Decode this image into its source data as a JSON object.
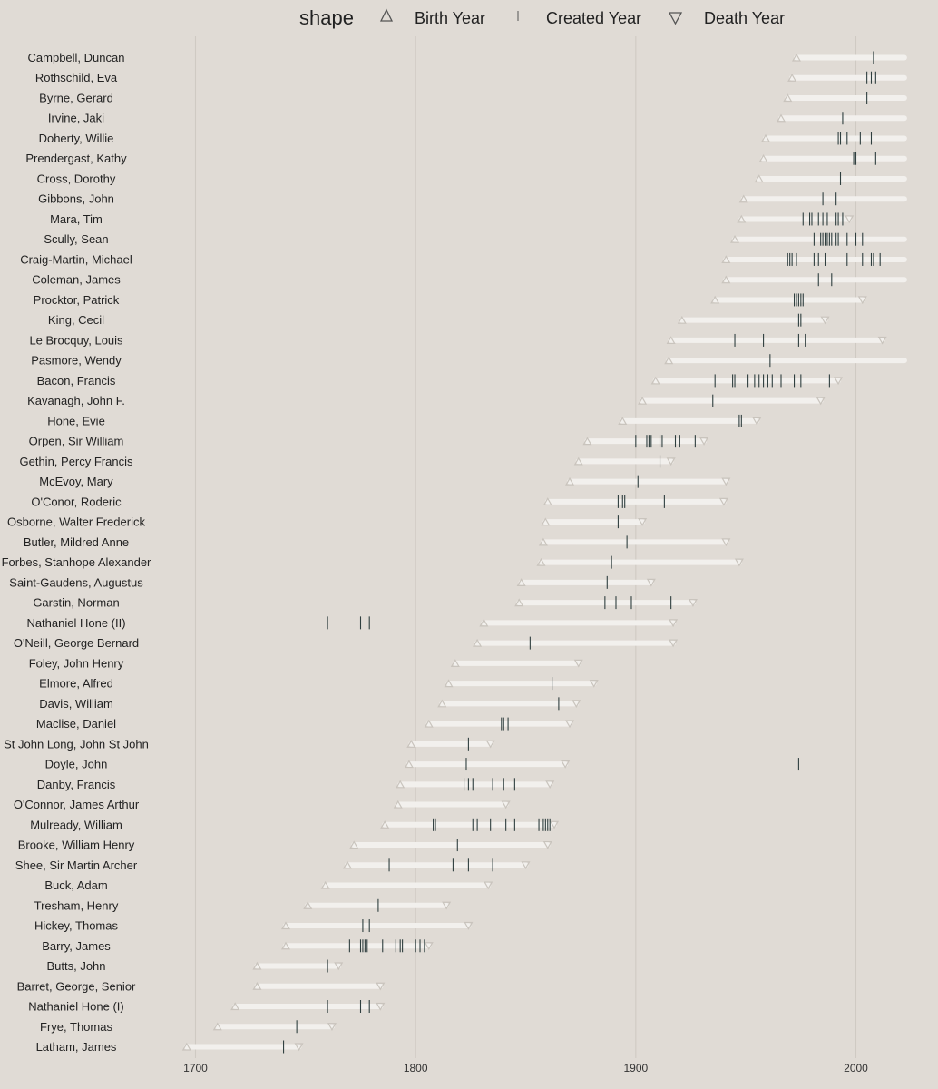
{
  "chart_data": {
    "type": "timeline",
    "title": "",
    "xlabel": "",
    "ylabel": "",
    "xlim": [
      1695,
      2025
    ],
    "x_ticks": [
      1700,
      1800,
      1900,
      2000
    ],
    "grid": true,
    "legend_position": "top",
    "legend": {
      "title": "shape",
      "items": [
        {
          "key": "birth",
          "label": "Birth Year",
          "symbol": "triangle-up"
        },
        {
          "key": "created",
          "label": "Created Year",
          "symbol": "vline"
        },
        {
          "key": "death",
          "label": "Death Year",
          "symbol": "triangle-down"
        }
      ]
    },
    "colors": {
      "background": "#e0dbd5",
      "span": "#f2f0ed",
      "grid": "#cfcac3",
      "marker_outline": "#c9c4bd",
      "created": "#2f3f3f",
      "legend_symbol": "#555555"
    },
    "rows": [
      {
        "name": "Campbell, Duncan",
        "birth": 1973,
        "death": null,
        "created": [
          2008
        ]
      },
      {
        "name": "Rothschild, Eva",
        "birth": 1971,
        "death": null,
        "created": [
          2005,
          2007,
          2009
        ]
      },
      {
        "name": "Byrne, Gerard",
        "birth": 1969,
        "death": null,
        "created": [
          2005
        ]
      },
      {
        "name": "Irvine, Jaki",
        "birth": 1966,
        "death": null,
        "created": [
          1994
        ]
      },
      {
        "name": "Doherty, Willie",
        "birth": 1959,
        "death": null,
        "created": [
          1992,
          1993,
          1996,
          2002,
          2007
        ]
      },
      {
        "name": "Prendergast, Kathy",
        "birth": 1958,
        "death": null,
        "created": [
          1999,
          2000,
          2009
        ]
      },
      {
        "name": "Cross, Dorothy",
        "birth": 1956,
        "death": null,
        "created": [
          1993
        ]
      },
      {
        "name": "Gibbons, John",
        "birth": 1949,
        "death": null,
        "created": [
          1985,
          1991
        ]
      },
      {
        "name": "Mara, Tim",
        "birth": 1948,
        "death": 1997,
        "created": [
          1976,
          1979,
          1980,
          1983,
          1985,
          1987,
          1991,
          1992,
          1994
        ]
      },
      {
        "name": "Scully, Sean",
        "birth": 1945,
        "death": null,
        "created": [
          1981,
          1984,
          1985,
          1986,
          1987,
          1988,
          1989,
          1991,
          1992,
          1996,
          2000,
          2003
        ]
      },
      {
        "name": "Craig-Martin, Michael",
        "birth": 1941,
        "death": null,
        "created": [
          1969,
          1970,
          1971,
          1973,
          1981,
          1983,
          1986,
          1996,
          2003,
          2007,
          2008,
          2011
        ]
      },
      {
        "name": "Coleman, James",
        "birth": 1941,
        "death": null,
        "created": [
          1983,
          1989
        ]
      },
      {
        "name": "Procktor, Patrick",
        "birth": 1936,
        "death": 2003,
        "created": [
          1972,
          1973,
          1974,
          1975,
          1976
        ]
      },
      {
        "name": "King, Cecil",
        "birth": 1921,
        "death": 1986,
        "created": [
          1974,
          1975
        ]
      },
      {
        "name": "Le Brocquy, Louis",
        "birth": 1916,
        "death": 2012,
        "created": [
          1945,
          1958,
          1974,
          1977
        ]
      },
      {
        "name": "Pasmore, Wendy",
        "birth": 1915,
        "death": null,
        "created": [
          1961
        ]
      },
      {
        "name": "Bacon, Francis",
        "birth": 1909,
        "death": 1992,
        "created": [
          1936,
          1944,
          1945,
          1951,
          1954,
          1956,
          1958,
          1960,
          1962,
          1966,
          1972,
          1975,
          1988
        ]
      },
      {
        "name": "Kavanagh, John F.",
        "birth": 1903,
        "death": 1984,
        "created": [
          1935
        ]
      },
      {
        "name": "Hone, Evie",
        "birth": 1894,
        "death": 1955,
        "created": [
          1947,
          1948
        ]
      },
      {
        "name": "Orpen, Sir William",
        "birth": 1878,
        "death": 1931,
        "created": [
          1900,
          1905,
          1906,
          1907,
          1911,
          1912,
          1918,
          1920,
          1927
        ]
      },
      {
        "name": "Gethin, Percy Francis",
        "birth": 1874,
        "death": 1916,
        "created": [
          1911
        ]
      },
      {
        "name": "McEvoy, Mary",
        "birth": 1870,
        "death": 1941,
        "created": [
          1901
        ]
      },
      {
        "name": "O'Conor, Roderic",
        "birth": 1860,
        "death": 1940,
        "created": [
          1892,
          1894,
          1895,
          1913
        ]
      },
      {
        "name": "Osborne, Walter Frederick",
        "birth": 1859,
        "death": 1903,
        "created": [
          1892
        ]
      },
      {
        "name": "Butler, Mildred Anne",
        "birth": 1858,
        "death": 1941,
        "created": [
          1896
        ]
      },
      {
        "name": "Forbes, Stanhope Alexander",
        "birth": 1857,
        "death": 1947,
        "created": [
          1889
        ]
      },
      {
        "name": "Saint-Gaudens, Augustus",
        "birth": 1848,
        "death": 1907,
        "created": [
          1887
        ]
      },
      {
        "name": "Garstin, Norman",
        "birth": 1847,
        "death": 1926,
        "created": [
          1886,
          1891,
          1898,
          1916
        ]
      },
      {
        "name": "Nathaniel Hone (II)",
        "birth": 1831,
        "death": 1917,
        "created": [
          1760,
          1775,
          1779
        ]
      },
      {
        "name": "O'Neill, George Bernard",
        "birth": 1828,
        "death": 1917,
        "created": [
          1852
        ]
      },
      {
        "name": "Foley, John Henry",
        "birth": 1818,
        "death": 1874,
        "created": []
      },
      {
        "name": "Elmore, Alfred",
        "birth": 1815,
        "death": 1881,
        "created": [
          1862
        ]
      },
      {
        "name": "Davis, William",
        "birth": 1812,
        "death": 1873,
        "created": [
          1865
        ]
      },
      {
        "name": "Maclise, Daniel",
        "birth": 1806,
        "death": 1870,
        "created": [
          1839,
          1840,
          1842
        ]
      },
      {
        "name": "St John Long, John St John",
        "birth": 1798,
        "death": 1834,
        "created": [
          1824
        ]
      },
      {
        "name": "Doyle, John",
        "birth": 1797,
        "death": 1868,
        "created": [
          1823,
          1974
        ]
      },
      {
        "name": "Danby, Francis",
        "birth": 1793,
        "death": 1861,
        "created": [
          1822,
          1824,
          1826,
          1835,
          1840,
          1845
        ]
      },
      {
        "name": "O'Connor, James Arthur",
        "birth": 1792,
        "death": 1841,
        "created": []
      },
      {
        "name": "Mulready, William",
        "birth": 1786,
        "death": 1863,
        "created": [
          1808,
          1809,
          1826,
          1828,
          1834,
          1841,
          1845,
          1856,
          1858,
          1859,
          1860,
          1861
        ]
      },
      {
        "name": "Brooke, William Henry",
        "birth": 1772,
        "death": 1860,
        "created": [
          1819
        ]
      },
      {
        "name": "Shee, Sir Martin Archer",
        "birth": 1769,
        "death": 1850,
        "created": [
          1788,
          1817,
          1824,
          1835
        ]
      },
      {
        "name": "Buck, Adam",
        "birth": 1759,
        "death": 1833,
        "created": []
      },
      {
        "name": "Tresham, Henry",
        "birth": 1751,
        "death": 1814,
        "created": [
          1783
        ]
      },
      {
        "name": "Hickey, Thomas",
        "birth": 1741,
        "death": 1824,
        "created": [
          1776,
          1779
        ]
      },
      {
        "name": "Barry, James",
        "birth": 1741,
        "death": 1806,
        "created": [
          1770,
          1775,
          1776,
          1777,
          1778,
          1785,
          1791,
          1793,
          1794,
          1800,
          1802,
          1804
        ]
      },
      {
        "name": "Butts, John",
        "birth": 1728,
        "death": 1765,
        "created": [
          1760
        ]
      },
      {
        "name": "Barret, George, Senior",
        "birth": 1728,
        "death": 1784,
        "created": []
      },
      {
        "name": "Nathaniel Hone (I)",
        "birth": 1718,
        "death": 1784,
        "created": [
          1760,
          1775,
          1779
        ]
      },
      {
        "name": "Frye, Thomas",
        "birth": 1710,
        "death": 1762,
        "created": [
          1746
        ]
      },
      {
        "name": "Latham, James",
        "birth": 1696,
        "death": 1747,
        "created": [
          1740
        ]
      }
    ]
  }
}
